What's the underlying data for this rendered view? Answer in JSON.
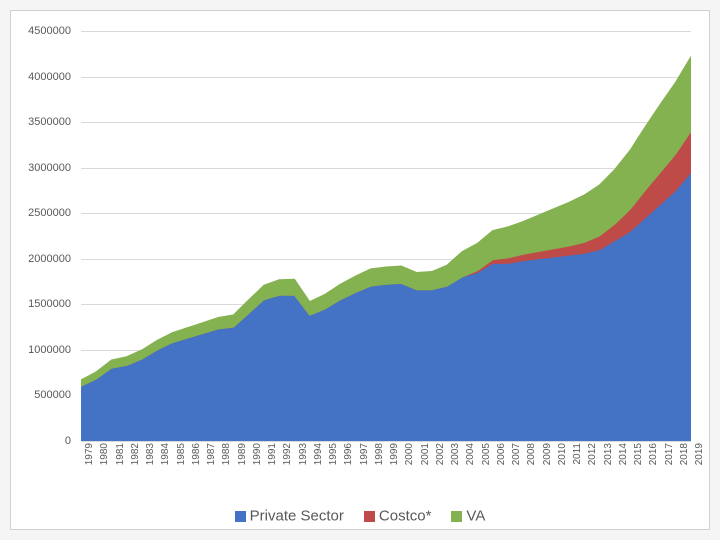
{
  "chart": {
    "type": "stacked-area",
    "background_color": "#ffffff",
    "border_color": "#d0d0d0",
    "grid_color": "#d9d9d9",
    "text_color": "#595959",
    "label_fontsize": 11,
    "legend_fontsize": 15,
    "ylim": [
      0,
      4500000
    ],
    "yticks": [
      0,
      500000,
      1000000,
      1500000,
      2000000,
      2500000,
      3000000,
      3500000,
      4000000,
      4500000
    ],
    "years": [
      "1979",
      "1980",
      "1981",
      "1982",
      "1983",
      "1984",
      "1985",
      "1986",
      "1987",
      "1988",
      "1989",
      "1990",
      "1991",
      "1992",
      "1993",
      "1994",
      "1995",
      "1996",
      "1997",
      "1998",
      "1999",
      "2000",
      "2001",
      "2002",
      "2003",
      "2004",
      "2005",
      "2006",
      "2007",
      "2008",
      "2009",
      "2010",
      "2011",
      "2012",
      "2013",
      "2014",
      "2015",
      "2016",
      "2017",
      "2018",
      "2019"
    ],
    "series": [
      {
        "name": "Private Sector",
        "color": "#4472c4",
        "values": [
          600000,
          680000,
          800000,
          830000,
          900000,
          1000000,
          1080000,
          1130000,
          1180000,
          1230000,
          1250000,
          1400000,
          1550000,
          1600000,
          1600000,
          1380000,
          1450000,
          1550000,
          1630000,
          1700000,
          1720000,
          1730000,
          1660000,
          1660000,
          1700000,
          1800000,
          1850000,
          1950000,
          1950000,
          1980000,
          2000000,
          2020000,
          2040000,
          2060000,
          2100000,
          2200000,
          2300000,
          2450000,
          2600000,
          2750000,
          2950000
        ]
      },
      {
        "name": "Costco*",
        "color": "#be4b48",
        "values": [
          0,
          0,
          0,
          0,
          0,
          0,
          0,
          0,
          0,
          0,
          0,
          0,
          0,
          0,
          0,
          0,
          0,
          0,
          0,
          0,
          0,
          0,
          0,
          0,
          0,
          0,
          20000,
          40000,
          60000,
          70000,
          80000,
          90000,
          100000,
          120000,
          150000,
          180000,
          240000,
          300000,
          350000,
          400000,
          450000
        ]
      },
      {
        "name": "VA",
        "color": "#85b250",
        "values": [
          70000,
          80000,
          90000,
          95000,
          100000,
          105000,
          110000,
          115000,
          120000,
          125000,
          135000,
          150000,
          160000,
          170000,
          175000,
          150000,
          160000,
          170000,
          180000,
          190000,
          190000,
          190000,
          190000,
          200000,
          230000,
          280000,
          300000,
          320000,
          340000,
          360000,
          400000,
          440000,
          480000,
          520000,
          560000,
          600000,
          650000,
          700000,
          750000,
          790000,
          820000
        ]
      }
    ],
    "legend": {
      "items": [
        {
          "label": "Private Sector",
          "color": "#4472c4"
        },
        {
          "label": "Costco*",
          "color": "#be4b48"
        },
        {
          "label": "VA",
          "color": "#85b250"
        }
      ]
    }
  }
}
